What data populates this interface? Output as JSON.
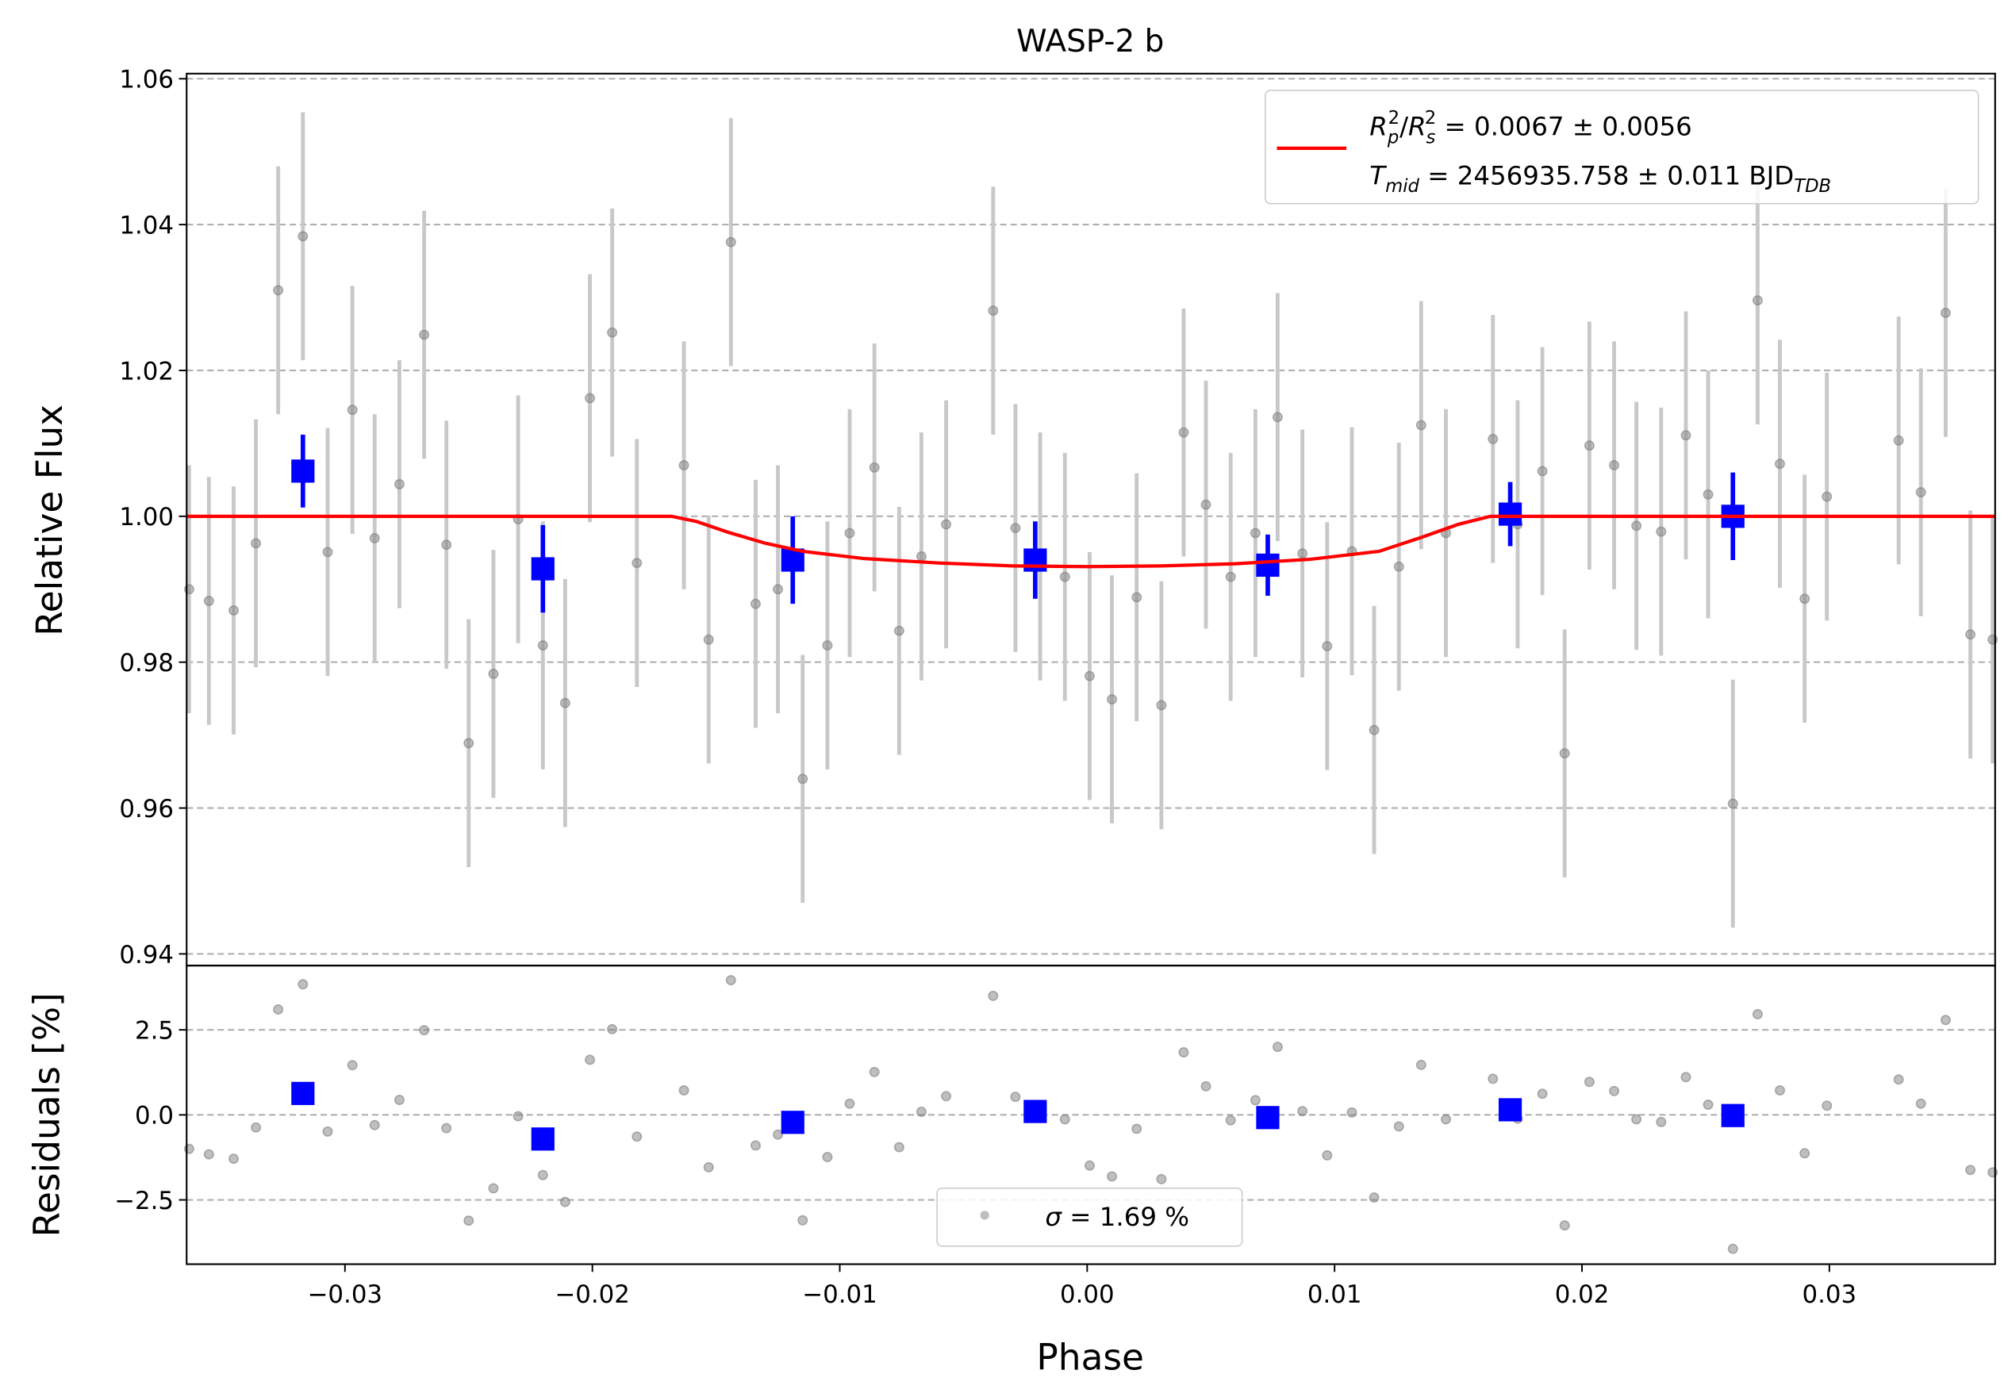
{
  "chart_data": [
    {
      "type": "scatter",
      "title": "WASP-2 b",
      "ylabel": "Relative Flux",
      "xlim": [
        -0.0364,
        0.0367
      ],
      "ylim": [
        0.9384,
        1.0607
      ],
      "yticks": [
        1.06,
        1.04,
        1.02,
        {
          "value": 1.0,
          "label": "1.00"
        },
        0.98,
        0.96,
        0.94
      ],
      "grid": true,
      "legend": [
        [
          {
            "t": "R",
            "s": "i"
          },
          {
            "t": "p",
            "s": "sub-i"
          },
          {
            "t": "2",
            "s": "sup"
          },
          {
            "t": "/",
            "s": "n"
          },
          {
            "t": "R",
            "s": "i"
          },
          {
            "t": "s",
            "s": "sub-i"
          },
          {
            "t": "2",
            "s": "sup"
          },
          {
            "t": " = 0.0067 ± 0.0056",
            "s": "n"
          }
        ],
        [
          {
            "t": "T",
            "s": "i"
          },
          {
            "t": "mid",
            "s": "sub-i"
          },
          {
            "t": " = 2456935.758 ± 0.011 BJD",
            "s": "n"
          },
          {
            "t": "TDB",
            "s": "sub-i"
          }
        ]
      ],
      "series": [
        {
          "type": "errorbar",
          "color": "#808080",
          "errcolor": "#c8c8c8",
          "x": [
            -0.0363,
            -0.0355,
            -0.0345,
            -0.0336,
            -0.0327,
            -0.0317,
            -0.0307,
            -0.0297,
            -0.0288,
            -0.0278,
            -0.0268,
            -0.0259,
            -0.025,
            -0.024,
            -0.023,
            -0.022,
            -0.0211,
            -0.0201,
            -0.0192,
            -0.0182,
            -0.0163,
            -0.0153,
            -0.0144,
            -0.0134,
            -0.0125,
            -0.0115,
            -0.0105,
            -0.0096,
            -0.0086,
            -0.0076,
            -0.0067,
            -0.0057,
            -0.0038,
            -0.0029,
            -0.0019,
            -0.0009,
            0.0001,
            0.001,
            0.002,
            0.003,
            0.0039,
            0.0048,
            0.0058,
            0.0068,
            0.0077,
            0.0087,
            0.0097,
            0.0107,
            0.0116,
            0.0126,
            0.0135,
            0.0145,
            0.0164,
            0.0174,
            0.0184,
            0.0193,
            0.0203,
            0.0213,
            0.0222,
            0.0232,
            0.0242,
            0.0251,
            0.0261,
            0.0271,
            0.028,
            0.029,
            0.0299,
            0.0328,
            0.0337,
            0.0347,
            0.0357,
            0.0366
          ],
          "values": [
            0.99,
            0.9884,
            0.9871,
            0.9963,
            1.031,
            1.0384,
            0.9951,
            1.0146,
            0.997,
            1.0044,
            1.0249,
            0.9961,
            0.9689,
            0.9784,
            0.9996,
            0.9823,
            0.9744,
            1.0162,
            1.0252,
            0.9936,
            1.007,
            0.9831,
            1.0376,
            0.988,
            0.99,
            0.964,
            0.9823,
            0.9977,
            1.0067,
            0.9843,
            0.9945,
            0.9989,
            1.0282,
            0.9984,
            0.9945,
            0.9917,
            0.9781,
            0.9749,
            0.9889,
            0.9741,
            1.0115,
            1.0016,
            0.9917,
            0.9977,
            1.0136,
            0.9949,
            0.9822,
            0.9952,
            0.9707,
            0.9931,
            1.0125,
            0.9977,
            1.0106,
            0.9989,
            1.0062,
            0.9675,
            1.0097,
            1.007,
            0.9987,
            0.9979,
            1.0111,
            1.003,
            0.9606,
            1.0296,
            1.0072,
            0.9887,
            1.0027,
            1.0104,
            1.0033,
            1.0279,
            0.9838,
            0.9831
          ],
          "errors": [
            0.017,
            0.017,
            0.017,
            0.017,
            0.017,
            0.017,
            0.017,
            0.017,
            0.017,
            0.017,
            0.017,
            0.017,
            0.017,
            0.017,
            0.017,
            0.017,
            0.017,
            0.017,
            0.017,
            0.017,
            0.017,
            0.017,
            0.017,
            0.017,
            0.017,
            0.017,
            0.017,
            0.017,
            0.017,
            0.017,
            0.017,
            0.017,
            0.017,
            0.017,
            0.017,
            0.017,
            0.017,
            0.017,
            0.017,
            0.017,
            0.017,
            0.017,
            0.017,
            0.017,
            0.017,
            0.017,
            0.017,
            0.017,
            0.017,
            0.017,
            0.017,
            0.017,
            0.017,
            0.017,
            0.017,
            0.017,
            0.017,
            0.017,
            0.017,
            0.017,
            0.017,
            0.017,
            0.017,
            0.017,
            0.017,
            0.017,
            0.017,
            0.017,
            0.017,
            0.017,
            0.017,
            0.017
          ]
        },
        {
          "type": "errorbar",
          "color": "#0000ff",
          "errcolor": "#0000ff",
          "x": [
            -0.0317,
            -0.022,
            -0.0119,
            -0.0021,
            0.0073,
            0.0171,
            0.0261
          ],
          "values": [
            1.0062,
            0.9928,
            0.994,
            0.994,
            0.9933,
            1.0003,
            1.0
          ],
          "errors": [
            0.005,
            0.006,
            0.006,
            0.0053,
            0.0042,
            0.0044,
            0.006
          ]
        },
        {
          "type": "line",
          "color": "#ff0000",
          "x": [
            -0.0364,
            -0.0168,
            -0.0158,
            -0.0145,
            -0.013,
            -0.0115,
            -0.009,
            -0.006,
            -0.003,
            0,
            0.003,
            0.006,
            0.009,
            0.0118,
            0.0135,
            0.015,
            0.0163,
            0.0367
          ],
          "values": [
            1,
            1,
            0.9993,
            0.9978,
            0.9963,
            0.9952,
            0.9942,
            0.9936,
            0.9932,
            0.9931,
            0.9932,
            0.9935,
            0.9941,
            0.9952,
            0.9971,
            0.9989,
            1,
            1
          ]
        }
      ]
    },
    {
      "type": "scatter",
      "ylabel": "Residuals [%]",
      "xlabel": "Phase",
      "xlim": [
        -0.0364,
        0.0367
      ],
      "ylim": [
        -4.39,
        4.39
      ],
      "xticks": [
        {
          "value": -0.03,
          "label": "−0.03"
        },
        {
          "value": -0.02,
          "label": "−0.02"
        },
        {
          "value": -0.01,
          "label": "−0.01"
        },
        {
          "value": 0,
          "label": "0.00"
        },
        0.01,
        0.02,
        0.03
      ],
      "yticks": [
        2.5,
        {
          "value": 0,
          "label": "0.0"
        },
        {
          "value": -2.5,
          "label": "−2.5"
        }
      ],
      "grid": true,
      "legend": [
        [
          {
            "t": "σ",
            "s": "i"
          },
          {
            "t": " = 1.69 %",
            "s": "n"
          }
        ]
      ],
      "series": [
        {
          "type": "scatter",
          "color": "#808080",
          "x": [
            -0.0363,
            -0.0355,
            -0.0345,
            -0.0336,
            -0.0327,
            -0.0317,
            -0.0307,
            -0.0297,
            -0.0288,
            -0.0278,
            -0.0268,
            -0.0259,
            -0.025,
            -0.024,
            -0.023,
            -0.022,
            -0.0211,
            -0.0201,
            -0.0192,
            -0.0182,
            -0.0163,
            -0.0153,
            -0.0144,
            -0.0134,
            -0.0125,
            -0.0115,
            -0.0105,
            -0.0096,
            -0.0086,
            -0.0076,
            -0.0067,
            -0.0057,
            -0.0038,
            -0.0029,
            -0.0019,
            -0.0009,
            0.0001,
            0.001,
            0.002,
            0.003,
            0.0039,
            0.0048,
            0.0058,
            0.0068,
            0.0077,
            0.0087,
            0.0097,
            0.0107,
            0.0116,
            0.0126,
            0.0135,
            0.0145,
            0.0164,
            0.0174,
            0.0184,
            0.0193,
            0.0203,
            0.0213,
            0.0222,
            0.0232,
            0.0242,
            0.0251,
            0.0261,
            0.0271,
            0.028,
            0.029,
            0.0299,
            0.0328,
            0.0337,
            0.0347,
            0.0357,
            0.0366
          ],
          "values": [
            -1.0,
            -1.16,
            -1.29,
            -0.37,
            3.1,
            3.84,
            -0.49,
            1.46,
            -0.3,
            0.44,
            2.49,
            -0.39,
            -3.11,
            -2.16,
            -0.04,
            -1.77,
            -2.56,
            1.62,
            2.52,
            -0.64,
            0.72,
            -1.54,
            3.96,
            -0.9,
            -0.58,
            -3.1,
            -1.24,
            0.33,
            1.26,
            -0.95,
            0.09,
            0.55,
            3.5,
            0.53,
            0.15,
            -0.13,
            -1.49,
            -1.81,
            -0.41,
            -1.89,
            1.84,
            0.84,
            -0.16,
            0.43,
            2.0,
            0.11,
            -1.19,
            0.07,
            -2.43,
            -0.34,
            1.47,
            -0.13,
            1.06,
            -0.11,
            0.62,
            -3.25,
            0.97,
            0.7,
            -0.13,
            -0.21,
            1.11,
            0.3,
            -3.94,
            2.96,
            0.72,
            -1.13,
            0.27,
            1.04,
            0.33,
            2.79,
            -1.62,
            -1.69
          ]
        },
        {
          "type": "square",
          "color": "#0000ff",
          "x": [
            -0.0317,
            -0.022,
            -0.0119,
            -0.0021,
            0.0073,
            0.0171,
            0.0261
          ],
          "values": [
            0.63,
            -0.71,
            -0.22,
            0.1,
            -0.08,
            0.15,
            -0.02
          ]
        }
      ]
    }
  ]
}
